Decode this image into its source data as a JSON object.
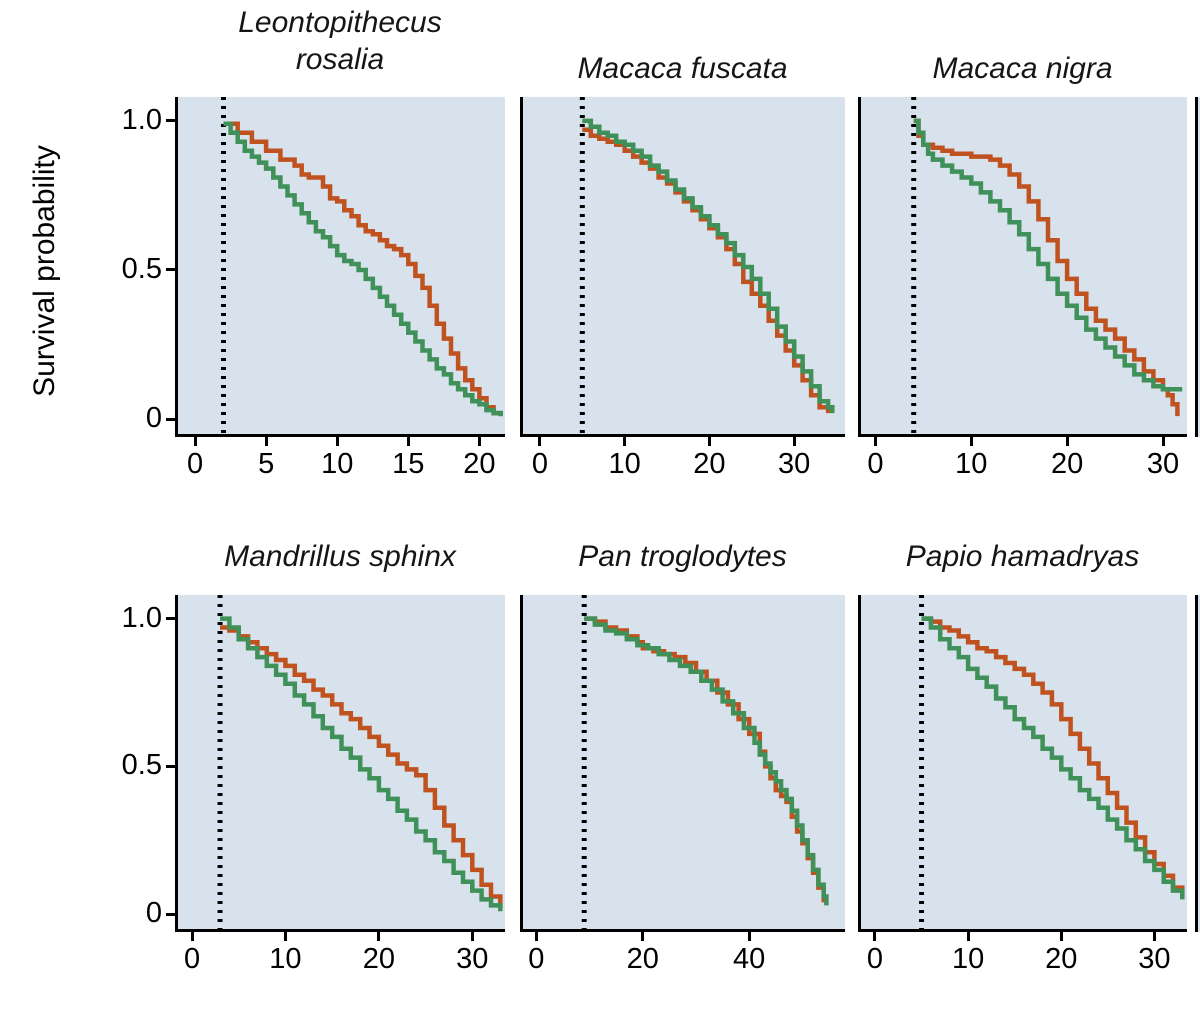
{
  "figure": {
    "y_axis_label": "Survival probability",
    "plot_background": "#d8e2ec",
    "axis_color": "#000000"
  },
  "chart_data": [
    {
      "type": "line",
      "title": "Leontopithecus rosalia",
      "title_lines": [
        "Leontopithecus",
        "rosalia"
      ],
      "xlim": [
        -1.2,
        21.8
      ],
      "ylim": [
        -0.05,
        1.08
      ],
      "xticks": [
        0,
        5,
        10,
        15,
        20
      ],
      "yticks": {
        "values": [
          0,
          0.5,
          1.0
        ],
        "labels": [
          "0",
          "0.5",
          "1.0"
        ]
      },
      "show_yticks": true,
      "vline_x": 2,
      "grid": false,
      "series": [
        {
          "name": "orange",
          "color": "#bf521f",
          "step": "post",
          "x": [
            2,
            3,
            4,
            5,
            6,
            7,
            7.5,
            8,
            9,
            9.5,
            10,
            10.5,
            11,
            11.5,
            12,
            12.5,
            13,
            13.5,
            14,
            14.5,
            15,
            15.5,
            16,
            16.5,
            17,
            17.5,
            18,
            18.5,
            19,
            19.5,
            20,
            20.5,
            21,
            21.5
          ],
          "y": [
            0.99,
            0.96,
            0.93,
            0.9,
            0.87,
            0.85,
            0.82,
            0.81,
            0.78,
            0.74,
            0.73,
            0.7,
            0.68,
            0.65,
            0.63,
            0.62,
            0.6,
            0.58,
            0.57,
            0.55,
            0.52,
            0.48,
            0.44,
            0.38,
            0.32,
            0.27,
            0.22,
            0.17,
            0.13,
            0.1,
            0.07,
            0.04,
            0.02,
            0.01
          ]
        },
        {
          "name": "green",
          "color": "#3f9059",
          "step": "post",
          "x": [
            2,
            2.5,
            3,
            3.5,
            4,
            4.5,
            5,
            5.5,
            6,
            6.5,
            7,
            7.5,
            8,
            8.5,
            9,
            9.5,
            10,
            10.5,
            11,
            11.5,
            12,
            12.5,
            13,
            13.5,
            14,
            14.5,
            15,
            15.5,
            16,
            16.5,
            17,
            17.5,
            18,
            18.5,
            19,
            19.5,
            20,
            20.5,
            21,
            21.5
          ],
          "y": [
            0.99,
            0.96,
            0.93,
            0.9,
            0.88,
            0.86,
            0.84,
            0.81,
            0.78,
            0.75,
            0.72,
            0.69,
            0.66,
            0.63,
            0.61,
            0.58,
            0.55,
            0.53,
            0.52,
            0.5,
            0.47,
            0.44,
            0.41,
            0.38,
            0.35,
            0.32,
            0.29,
            0.26,
            0.23,
            0.2,
            0.17,
            0.15,
            0.12,
            0.1,
            0.08,
            0.06,
            0.05,
            0.03,
            0.02,
            0.01
          ]
        }
      ]
    },
    {
      "type": "line",
      "title": "Macaca fuscata",
      "title_lines": [
        "Macaca fuscata"
      ],
      "xlim": [
        -2,
        36
      ],
      "ylim": [
        -0.05,
        1.08
      ],
      "xticks": [
        0,
        10,
        20,
        30
      ],
      "yticks": {
        "values": [
          0,
          0.5,
          1.0
        ],
        "labels": [
          "0",
          "0.5",
          "1.0"
        ]
      },
      "show_yticks": false,
      "vline_x": 5,
      "grid": false,
      "series": [
        {
          "name": "orange",
          "color": "#bf521f",
          "step": "post",
          "x": [
            5,
            6,
            7,
            8,
            9,
            10,
            11,
            12,
            13,
            14,
            15,
            16,
            17,
            18,
            19,
            20,
            21,
            22,
            23,
            24,
            25,
            26,
            27,
            28,
            29,
            30,
            31,
            32,
            33,
            34
          ],
          "y": [
            0.97,
            0.95,
            0.94,
            0.93,
            0.92,
            0.9,
            0.88,
            0.86,
            0.84,
            0.81,
            0.79,
            0.76,
            0.73,
            0.7,
            0.67,
            0.64,
            0.61,
            0.57,
            0.52,
            0.46,
            0.42,
            0.38,
            0.33,
            0.28,
            0.23,
            0.18,
            0.13,
            0.08,
            0.04,
            0.02
          ]
        },
        {
          "name": "green",
          "color": "#3f9059",
          "step": "post",
          "x": [
            5,
            6,
            7,
            8,
            9,
            10,
            11,
            12,
            13,
            14,
            15,
            16,
            17,
            18,
            19,
            20,
            21,
            22,
            23,
            24,
            25,
            26,
            27,
            28,
            29,
            30,
            31,
            32,
            33,
            34,
            34.5
          ],
          "y": [
            1.0,
            0.98,
            0.96,
            0.95,
            0.93,
            0.92,
            0.9,
            0.88,
            0.85,
            0.83,
            0.8,
            0.77,
            0.74,
            0.71,
            0.68,
            0.65,
            0.62,
            0.59,
            0.55,
            0.51,
            0.47,
            0.42,
            0.37,
            0.31,
            0.26,
            0.21,
            0.16,
            0.11,
            0.06,
            0.04,
            0.02
          ]
        }
      ]
    },
    {
      "type": "line",
      "title": "Macaca nigra",
      "title_lines": [
        "Macaca nigra"
      ],
      "xlim": [
        -1.5,
        32.5
      ],
      "ylim": [
        -0.05,
        1.08
      ],
      "xticks": [
        0,
        10,
        20,
        30
      ],
      "yticks": {
        "values": [
          0,
          0.5,
          1.0
        ],
        "labels": [
          "0",
          "0.5",
          "1.0"
        ]
      },
      "show_yticks": false,
      "vline_x": 4,
      "grid": false,
      "series": [
        {
          "name": "orange",
          "color": "#bf521f",
          "step": "post",
          "x": [
            4,
            4.5,
            5,
            6,
            7,
            8,
            9,
            10,
            11,
            12,
            13,
            14,
            15,
            16,
            17,
            18,
            19,
            20,
            21,
            22,
            23,
            24,
            25,
            26,
            27,
            28,
            29,
            30,
            30.5,
            31,
            31.5
          ],
          "y": [
            1.0,
            0.95,
            0.92,
            0.91,
            0.9,
            0.89,
            0.89,
            0.88,
            0.88,
            0.87,
            0.85,
            0.82,
            0.78,
            0.73,
            0.67,
            0.6,
            0.53,
            0.47,
            0.42,
            0.37,
            0.33,
            0.3,
            0.27,
            0.23,
            0.2,
            0.16,
            0.13,
            0.1,
            0.08,
            0.05,
            0.01
          ]
        },
        {
          "name": "green",
          "color": "#3f9059",
          "step": "post",
          "x": [
            4,
            4.5,
            5,
            5.5,
            6,
            7,
            8,
            9,
            10,
            11,
            12,
            13,
            14,
            15,
            16,
            17,
            18,
            19,
            20,
            21,
            22,
            23,
            24,
            25,
            26,
            27,
            28,
            29,
            30,
            31,
            32
          ],
          "y": [
            1.0,
            0.96,
            0.92,
            0.89,
            0.87,
            0.85,
            0.83,
            0.81,
            0.79,
            0.76,
            0.73,
            0.7,
            0.66,
            0.62,
            0.57,
            0.52,
            0.47,
            0.42,
            0.38,
            0.34,
            0.3,
            0.27,
            0.24,
            0.21,
            0.18,
            0.15,
            0.13,
            0.11,
            0.1,
            0.1,
            0.1
          ]
        }
      ]
    },
    {
      "type": "line",
      "title": "Mandrillus sphinx",
      "title_lines": [
        "Mandrillus sphinx"
      ],
      "xlim": [
        -1.5,
        33.5
      ],
      "ylim": [
        -0.05,
        1.08
      ],
      "xticks": [
        0,
        10,
        20,
        30
      ],
      "yticks": {
        "values": [
          0,
          0.5,
          1.0
        ],
        "labels": [
          "0",
          "0.5",
          "1.0"
        ]
      },
      "show_yticks": true,
      "vline_x": 3,
      "grid": false,
      "series": [
        {
          "name": "orange",
          "color": "#bf521f",
          "step": "post",
          "x": [
            3,
            4,
            5,
            6,
            7,
            8,
            9,
            10,
            11,
            12,
            13,
            14,
            15,
            16,
            17,
            18,
            19,
            20,
            21,
            22,
            23,
            24,
            25,
            26,
            27,
            28,
            29,
            30,
            31,
            32,
            33
          ],
          "y": [
            0.97,
            0.96,
            0.94,
            0.92,
            0.9,
            0.88,
            0.86,
            0.84,
            0.81,
            0.79,
            0.76,
            0.74,
            0.71,
            0.68,
            0.66,
            0.63,
            0.6,
            0.57,
            0.54,
            0.51,
            0.49,
            0.47,
            0.42,
            0.36,
            0.3,
            0.25,
            0.2,
            0.15,
            0.1,
            0.06,
            0.02
          ]
        },
        {
          "name": "green",
          "color": "#3f9059",
          "step": "post",
          "x": [
            3,
            4,
            5,
            6,
            7,
            8,
            9,
            10,
            11,
            12,
            13,
            14,
            15,
            16,
            17,
            18,
            19,
            20,
            21,
            22,
            23,
            24,
            25,
            26,
            27,
            28,
            29,
            30,
            31,
            32,
            33
          ],
          "y": [
            1.0,
            0.97,
            0.93,
            0.9,
            0.87,
            0.84,
            0.81,
            0.78,
            0.74,
            0.71,
            0.67,
            0.63,
            0.6,
            0.56,
            0.53,
            0.49,
            0.46,
            0.42,
            0.39,
            0.35,
            0.32,
            0.28,
            0.25,
            0.21,
            0.18,
            0.14,
            0.11,
            0.08,
            0.05,
            0.03,
            0.01
          ]
        }
      ]
    },
    {
      "type": "line",
      "title": "Pan troglodytes",
      "title_lines": [
        "Pan troglodytes"
      ],
      "xlim": [
        -2.5,
        58
      ],
      "ylim": [
        -0.05,
        1.08
      ],
      "xticks": [
        0,
        20,
        40
      ],
      "yticks": {
        "values": [
          0,
          0.5,
          1.0
        ],
        "labels": [
          "0",
          "0.5",
          "1.0"
        ]
      },
      "show_yticks": false,
      "vline_x": 9,
      "grid": false,
      "series": [
        {
          "name": "orange",
          "color": "#bf521f",
          "step": "post",
          "x": [
            9,
            11,
            13,
            15,
            17,
            19,
            20,
            22,
            24,
            26,
            28,
            30,
            32,
            34,
            36,
            38,
            40,
            42,
            43,
            44,
            45,
            46,
            47,
            48,
            49,
            50,
            51,
            52,
            53,
            54
          ],
          "y": [
            1.0,
            0.99,
            0.97,
            0.96,
            0.94,
            0.92,
            0.9,
            0.89,
            0.88,
            0.87,
            0.85,
            0.82,
            0.79,
            0.75,
            0.71,
            0.66,
            0.61,
            0.55,
            0.5,
            0.46,
            0.42,
            0.4,
            0.38,
            0.33,
            0.28,
            0.24,
            0.19,
            0.14,
            0.09,
            0.04
          ]
        },
        {
          "name": "green",
          "color": "#3f9059",
          "step": "post",
          "x": [
            9,
            11,
            13,
            15,
            17,
            19,
            21,
            23,
            25,
            27,
            29,
            31,
            33,
            35,
            37,
            39,
            41,
            42,
            43,
            44,
            45,
            46,
            47,
            48,
            49,
            50,
            51,
            52,
            53,
            54,
            54.5
          ],
          "y": [
            1.0,
            0.98,
            0.96,
            0.95,
            0.93,
            0.91,
            0.9,
            0.88,
            0.86,
            0.84,
            0.82,
            0.79,
            0.76,
            0.72,
            0.68,
            0.63,
            0.58,
            0.54,
            0.51,
            0.48,
            0.45,
            0.42,
            0.39,
            0.35,
            0.3,
            0.25,
            0.2,
            0.15,
            0.1,
            0.06,
            0.03
          ]
        }
      ]
    },
    {
      "type": "line",
      "title": "Papio hamadryas",
      "title_lines": [
        "Papio hamadryas"
      ],
      "xlim": [
        -1.5,
        33.5
      ],
      "ylim": [
        -0.05,
        1.08
      ],
      "xticks": [
        0,
        10,
        20,
        30
      ],
      "yticks": {
        "values": [
          0,
          0.5,
          1.0
        ],
        "labels": [
          "0",
          "0.5",
          "1.0"
        ]
      },
      "show_yticks": false,
      "vline_x": 5,
      "grid": false,
      "series": [
        {
          "name": "orange",
          "color": "#bf521f",
          "step": "post",
          "x": [
            5,
            6,
            7,
            8,
            9,
            10,
            11,
            12,
            13,
            14,
            15,
            16,
            17,
            18,
            19,
            20,
            21,
            22,
            23,
            24,
            25,
            26,
            27,
            28,
            29,
            30,
            31,
            32,
            33
          ],
          "y": [
            1.0,
            0.99,
            0.97,
            0.96,
            0.94,
            0.92,
            0.9,
            0.89,
            0.87,
            0.85,
            0.83,
            0.81,
            0.78,
            0.75,
            0.71,
            0.66,
            0.61,
            0.56,
            0.51,
            0.46,
            0.41,
            0.36,
            0.31,
            0.26,
            0.21,
            0.17,
            0.13,
            0.09,
            0.06
          ]
        },
        {
          "name": "green",
          "color": "#3f9059",
          "step": "post",
          "x": [
            5,
            6,
            7,
            8,
            9,
            10,
            11,
            12,
            13,
            14,
            15,
            16,
            17,
            18,
            19,
            20,
            21,
            22,
            23,
            24,
            25,
            26,
            27,
            28,
            29,
            30,
            31,
            32,
            33
          ],
          "y": [
            1.0,
            0.97,
            0.93,
            0.9,
            0.87,
            0.83,
            0.8,
            0.77,
            0.73,
            0.7,
            0.66,
            0.63,
            0.6,
            0.56,
            0.53,
            0.49,
            0.46,
            0.42,
            0.39,
            0.36,
            0.32,
            0.29,
            0.25,
            0.22,
            0.18,
            0.15,
            0.11,
            0.08,
            0.05
          ]
        }
      ]
    }
  ]
}
